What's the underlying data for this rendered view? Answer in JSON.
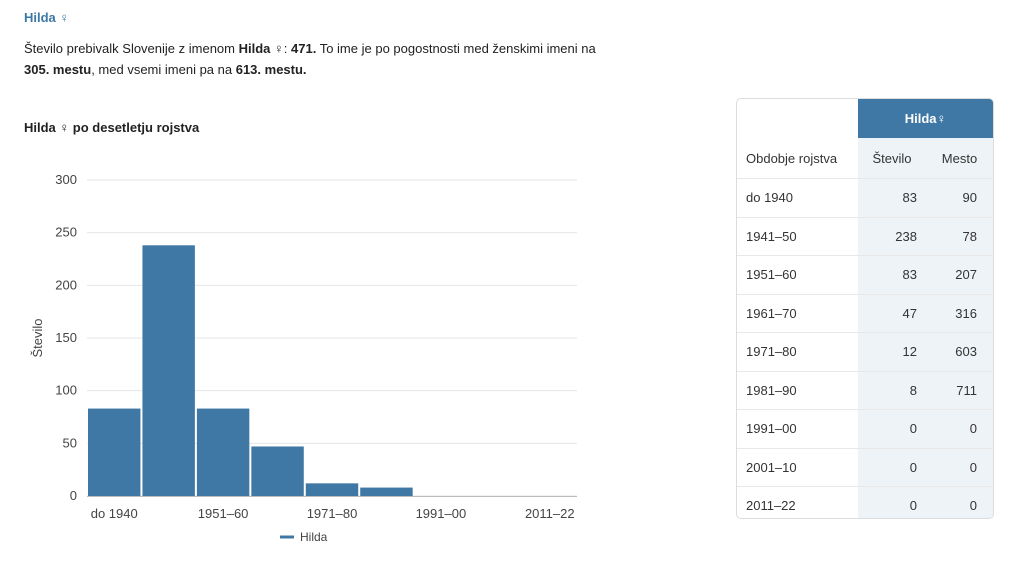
{
  "header": {
    "name": "Hilda",
    "female_symbol": "♀"
  },
  "description": {
    "t1": "Število prebivalk Slovenije z imenom ",
    "t2": ": ",
    "count": "471.",
    "t3": " To ime je po pogostnosti med ženskimi imeni na ",
    "rank_female": "305. mestu",
    "t4": ", med vsemi imeni pa na ",
    "rank_all": "613. mestu."
  },
  "chart_title": "po desetletju rojstva",
  "chart_data": {
    "type": "bar",
    "categories": [
      "do 1940",
      "1941–50",
      "1951–60",
      "1961–70",
      "1971–80",
      "1981–90",
      "1991–00",
      "2001–10",
      "2011–22"
    ],
    "x_tick_labels": [
      "do 1940",
      "1951–60",
      "1971–80",
      "1991–00",
      "2011–22"
    ],
    "series": [
      {
        "name": "Hilda",
        "values": [
          83,
          238,
          83,
          47,
          12,
          8,
          0,
          0,
          0
        ]
      }
    ],
    "ylabel": "Število",
    "ylim": [
      0,
      300
    ],
    "yticks": [
      0,
      50,
      100,
      150,
      200,
      250,
      300
    ],
    "grid": true,
    "legend": "bottom",
    "bar_color": "#3f78a4"
  },
  "table": {
    "brand": "Hilda♀",
    "headers": [
      "Obdobje rojstva",
      "Število",
      "Mesto"
    ],
    "rows": [
      [
        "do 1940",
        "83",
        "90"
      ],
      [
        "1941–50",
        "238",
        "78"
      ],
      [
        "1951–60",
        "83",
        "207"
      ],
      [
        "1961–70",
        "47",
        "316"
      ],
      [
        "1971–80",
        "12",
        "603"
      ],
      [
        "1981–90",
        "8",
        "711"
      ],
      [
        "1991–00",
        "0",
        "0"
      ],
      [
        "2001–10",
        "0",
        "0"
      ],
      [
        "2011–22",
        "0",
        "0"
      ]
    ]
  }
}
